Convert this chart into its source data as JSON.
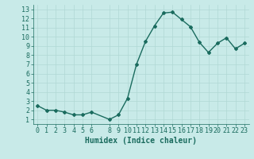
{
  "x": [
    0,
    1,
    2,
    3,
    4,
    5,
    6,
    8,
    9,
    10,
    11,
    12,
    13,
    14,
    15,
    16,
    17,
    18,
    19,
    20,
    21,
    22,
    23
  ],
  "y": [
    2.5,
    2.0,
    2.0,
    1.8,
    1.5,
    1.5,
    1.8,
    1.0,
    1.5,
    3.3,
    7.0,
    9.5,
    11.2,
    12.6,
    12.7,
    11.9,
    11.1,
    9.4,
    8.3,
    9.3,
    9.9,
    8.7,
    9.3
  ],
  "line_color": "#1a6b5e",
  "marker": "D",
  "marker_size": 2.0,
  "bg_color": "#c8eae8",
  "grid_color": "#b0d8d4",
  "xlabel": "Humidex (Indice chaleur)",
  "xlabel_fontsize": 7,
  "xlim": [
    -0.5,
    23.5
  ],
  "ylim": [
    0.5,
    13.5
  ],
  "yticks": [
    1,
    2,
    3,
    4,
    5,
    6,
    7,
    8,
    9,
    10,
    11,
    12,
    13
  ],
  "xticks": [
    0,
    1,
    2,
    3,
    4,
    5,
    6,
    8,
    9,
    10,
    11,
    12,
    13,
    14,
    15,
    16,
    17,
    18,
    19,
    20,
    21,
    22,
    23
  ],
  "tick_fontsize": 6,
  "line_width": 1.0
}
